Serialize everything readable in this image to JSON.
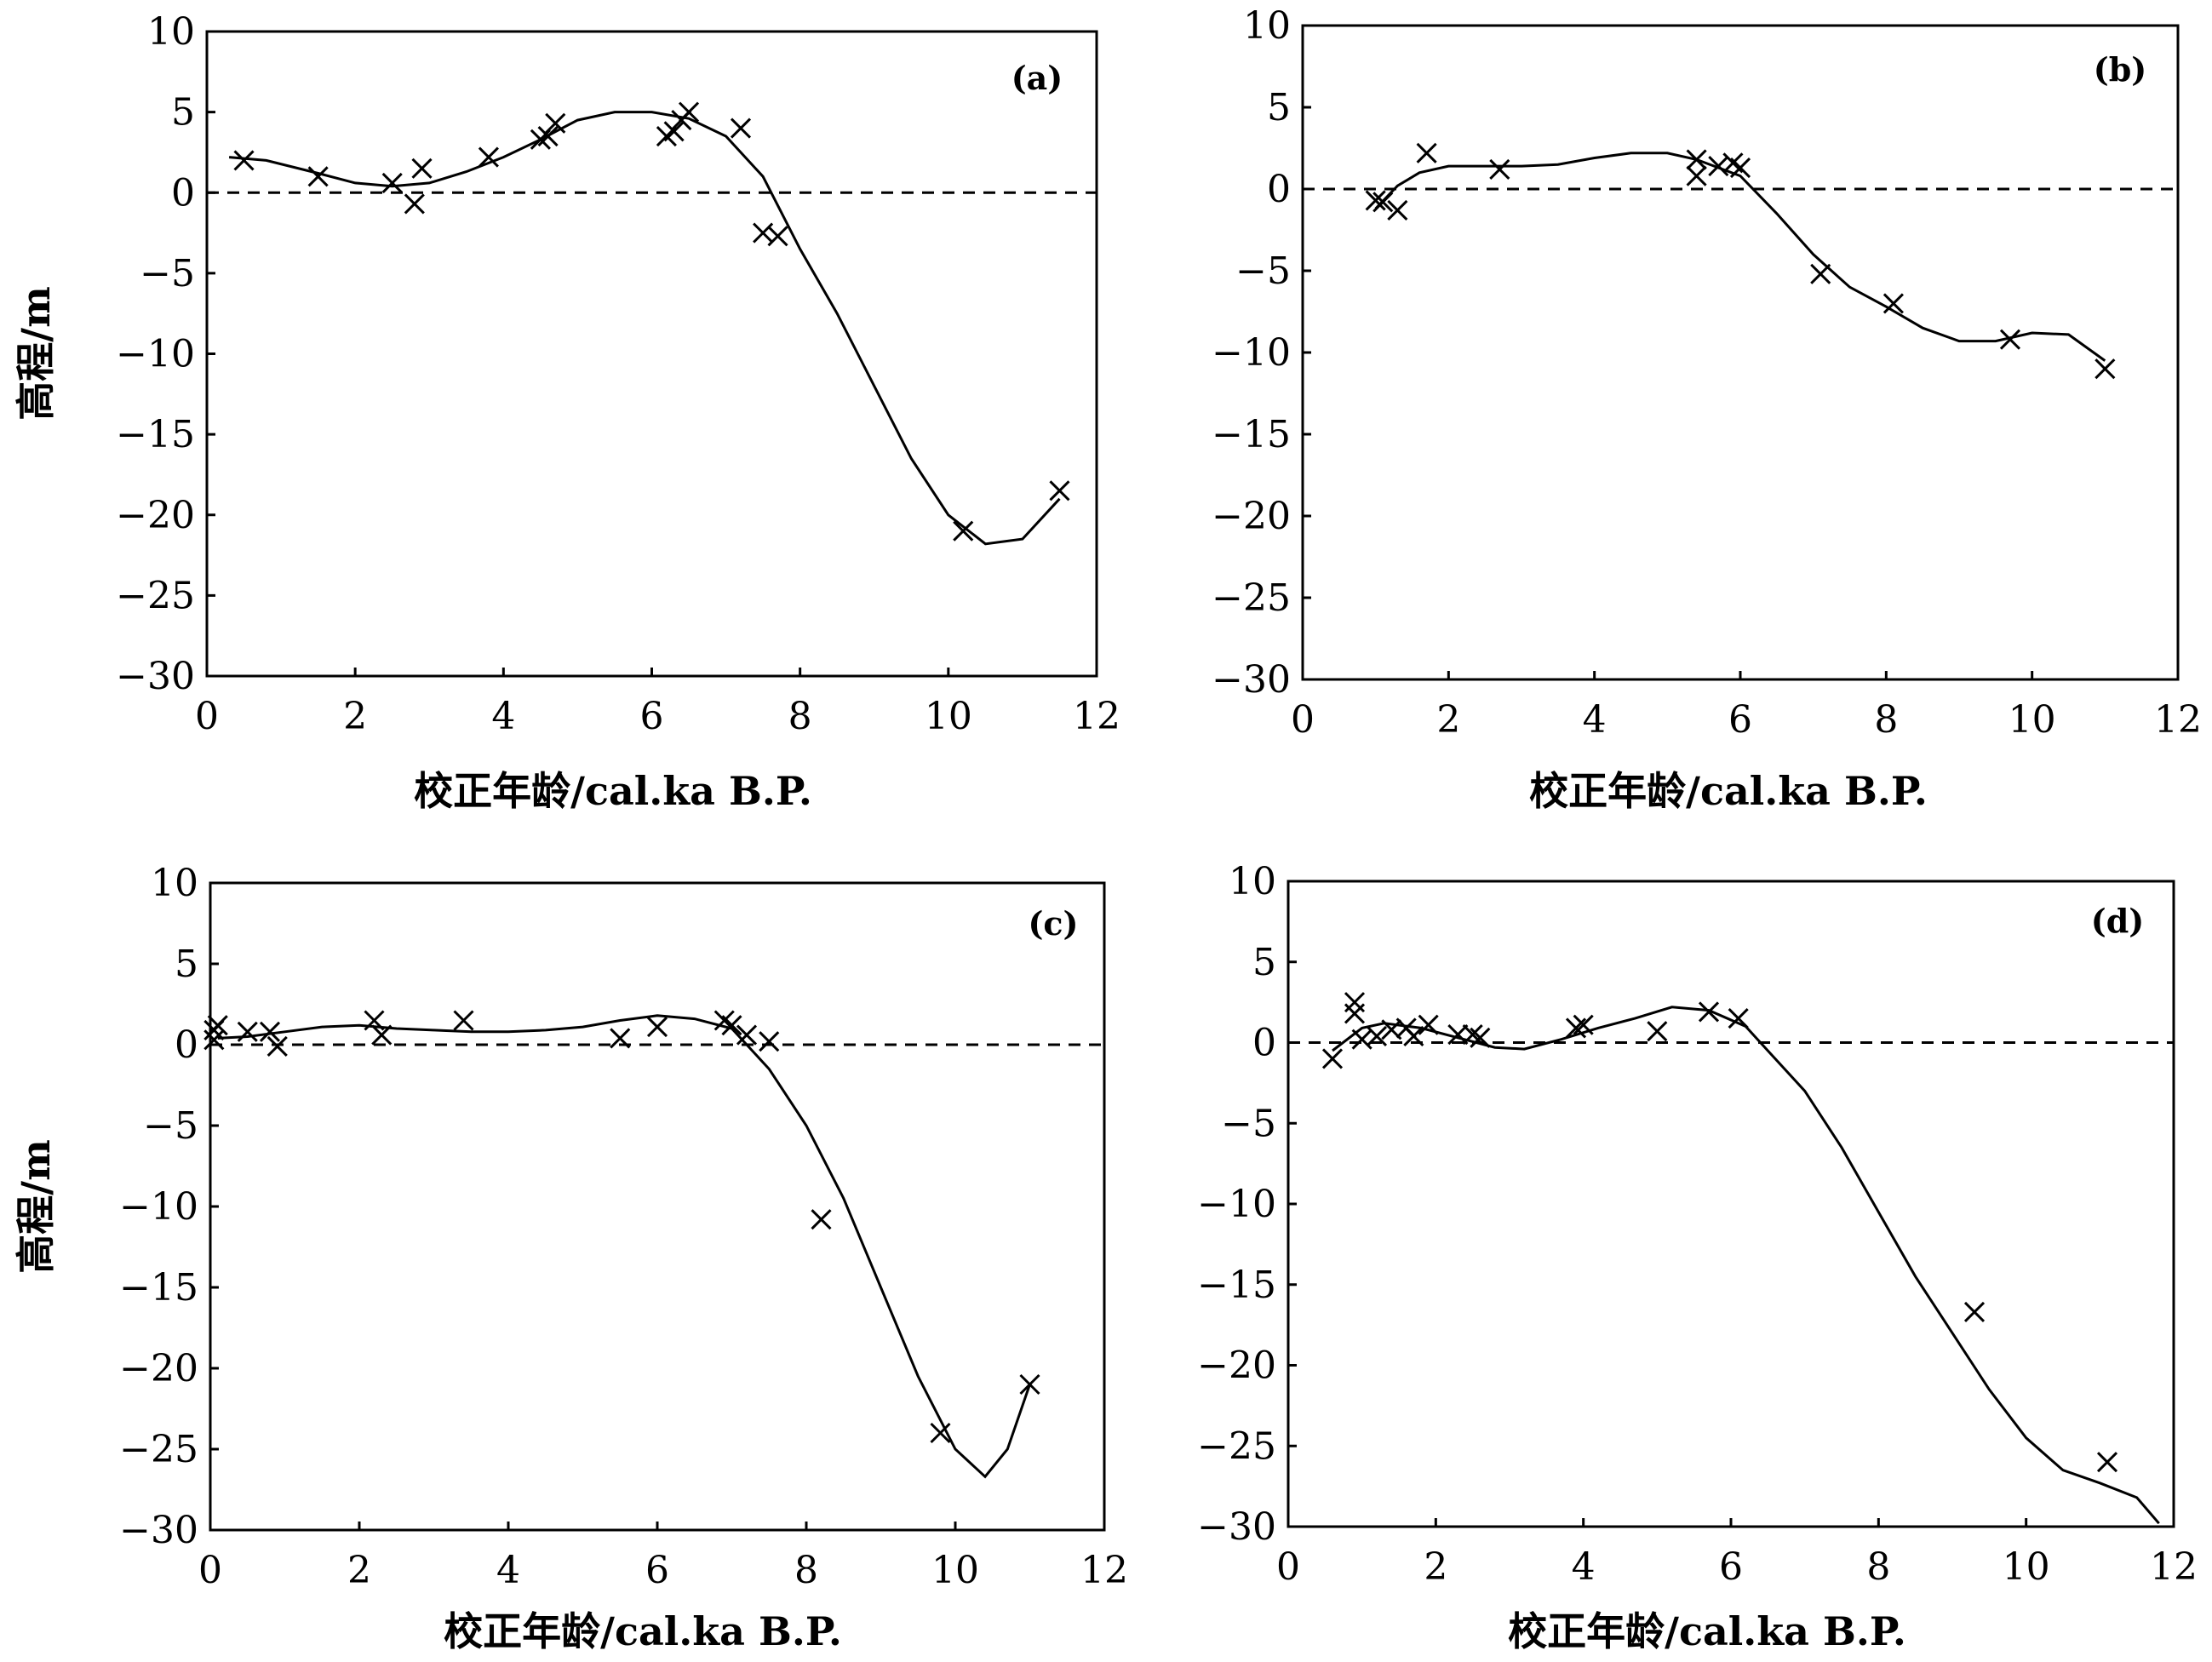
{
  "chart_data": [
    {
      "type": "scatter",
      "panel_label": "(a)",
      "xlabel": "校正年龄/cal.ka B.P.",
      "ylabel": "高程/m",
      "xlim": [
        0,
        12
      ],
      "ylim": [
        -30,
        10
      ],
      "xticks": [
        0,
        2,
        4,
        6,
        8,
        10,
        12
      ],
      "yticks": [
        10,
        5,
        0,
        -5,
        -10,
        -15,
        -20,
        -25,
        -30
      ],
      "reference_line_y": 0,
      "points": [
        [
          0.5,
          2.0
        ],
        [
          1.5,
          1.0
        ],
        [
          2.5,
          0.6
        ],
        [
          2.8,
          -0.7
        ],
        [
          2.9,
          1.5
        ],
        [
          3.8,
          2.2
        ],
        [
          4.5,
          3.3
        ],
        [
          4.6,
          3.5
        ],
        [
          4.7,
          4.3
        ],
        [
          6.2,
          3.5
        ],
        [
          6.3,
          3.8
        ],
        [
          6.4,
          4.5
        ],
        [
          6.5,
          5.0
        ],
        [
          7.2,
          4.0
        ],
        [
          7.5,
          -2.5
        ],
        [
          7.7,
          -2.7
        ],
        [
          10.2,
          -21.0
        ],
        [
          11.5,
          -18.5
        ]
      ],
      "curve": [
        [
          0.3,
          2.2
        ],
        [
          0.8,
          2.0
        ],
        [
          1.5,
          1.2
        ],
        [
          2.0,
          0.6
        ],
        [
          2.5,
          0.4
        ],
        [
          3.0,
          0.6
        ],
        [
          3.5,
          1.3
        ],
        [
          4.0,
          2.2
        ],
        [
          4.5,
          3.3
        ],
        [
          5.0,
          4.5
        ],
        [
          5.5,
          5.0
        ],
        [
          6.0,
          5.0
        ],
        [
          6.5,
          4.6
        ],
        [
          7.0,
          3.5
        ],
        [
          7.5,
          1.0
        ],
        [
          8.0,
          -3.5
        ],
        [
          8.5,
          -7.5
        ],
        [
          9.0,
          -12.0
        ],
        [
          9.5,
          -16.5
        ],
        [
          10.0,
          -20.0
        ],
        [
          10.5,
          -21.8
        ],
        [
          11.0,
          -21.5
        ],
        [
          11.5,
          -19.0
        ]
      ]
    },
    {
      "type": "scatter",
      "panel_label": "(b)",
      "xlabel": "校正年龄/cal.ka B.P.",
      "ylabel": "",
      "xlim": [
        0,
        12
      ],
      "ylim": [
        -30,
        10
      ],
      "xticks": [
        0,
        2,
        4,
        6,
        8,
        10,
        12
      ],
      "yticks": [
        10,
        5,
        0,
        -5,
        -10,
        -15,
        -20,
        -25,
        -30
      ],
      "reference_line_y": 0,
      "points": [
        [
          1.0,
          -0.7
        ],
        [
          1.1,
          -0.8
        ],
        [
          1.3,
          -1.3
        ],
        [
          1.7,
          2.2
        ],
        [
          2.7,
          1.2
        ],
        [
          5.4,
          1.8
        ],
        [
          5.4,
          0.8
        ],
        [
          5.7,
          1.4
        ],
        [
          5.9,
          1.6
        ],
        [
          6.0,
          1.3
        ],
        [
          7.1,
          -5.2
        ],
        [
          8.1,
          -7.0
        ],
        [
          9.7,
          -9.2
        ],
        [
          11.0,
          -11.0
        ]
      ],
      "curve": [
        [
          1.0,
          -1.2
        ],
        [
          1.3,
          0.2
        ],
        [
          1.6,
          1.0
        ],
        [
          2.0,
          1.4
        ],
        [
          3.0,
          1.4
        ],
        [
          3.5,
          1.5
        ],
        [
          4.0,
          1.9
        ],
        [
          4.5,
          2.2
        ],
        [
          5.0,
          2.2
        ],
        [
          5.4,
          1.8
        ],
        [
          6.0,
          0.8
        ],
        [
          6.5,
          -1.5
        ],
        [
          7.0,
          -4.0
        ],
        [
          7.5,
          -6.0
        ],
        [
          8.0,
          -7.2
        ],
        [
          8.5,
          -8.5
        ],
        [
          9.0,
          -9.3
        ],
        [
          9.5,
          -9.3
        ],
        [
          10.0,
          -8.8
        ],
        [
          10.5,
          -8.9
        ],
        [
          11.0,
          -10.5
        ]
      ]
    },
    {
      "type": "scatter",
      "panel_label": "(c)",
      "xlabel": "校正年龄/cal.ka B.P.",
      "ylabel": "高程/m",
      "xlim": [
        0,
        12
      ],
      "ylim": [
        -30,
        10
      ],
      "xticks": [
        0,
        2,
        4,
        6,
        8,
        10,
        12
      ],
      "yticks": [
        10,
        5,
        0,
        -5,
        -10,
        -15,
        -20,
        -25,
        -30
      ],
      "reference_line_y": 0,
      "points": [
        [
          0.05,
          0.3
        ],
        [
          0.05,
          0.9
        ],
        [
          0.1,
          1.2
        ],
        [
          0.5,
          0.8
        ],
        [
          0.8,
          0.8
        ],
        [
          0.9,
          -0.1
        ],
        [
          2.2,
          1.5
        ],
        [
          2.3,
          0.6
        ],
        [
          3.4,
          1.5
        ],
        [
          5.5,
          0.4
        ],
        [
          6.0,
          1.1
        ],
        [
          6.9,
          1.5
        ],
        [
          7.0,
          1.2
        ],
        [
          7.2,
          0.6
        ],
        [
          7.5,
          0.2
        ],
        [
          8.2,
          -10.8
        ],
        [
          9.8,
          -24.0
        ],
        [
          11.0,
          -21.0
        ]
      ],
      "curve": [
        [
          0.1,
          0.4
        ],
        [
          0.5,
          0.5
        ],
        [
          1.0,
          0.8
        ],
        [
          1.5,
          1.1
        ],
        [
          2.0,
          1.2
        ],
        [
          2.5,
          1.0
        ],
        [
          3.0,
          0.9
        ],
        [
          3.5,
          0.8
        ],
        [
          4.0,
          0.8
        ],
        [
          4.5,
          0.9
        ],
        [
          5.0,
          1.1
        ],
        [
          5.5,
          1.5
        ],
        [
          6.0,
          1.8
        ],
        [
          6.5,
          1.6
        ],
        [
          7.0,
          1.0
        ],
        [
          7.5,
          -1.5
        ],
        [
          8.0,
          -5.0
        ],
        [
          8.5,
          -9.5
        ],
        [
          9.0,
          -15.0
        ],
        [
          9.5,
          -20.5
        ],
        [
          10.0,
          -25.0
        ],
        [
          10.4,
          -26.7
        ],
        [
          10.7,
          -25.0
        ],
        [
          11.0,
          -21.0
        ]
      ]
    },
    {
      "type": "scatter",
      "panel_label": "(d)",
      "xlabel": "校正年龄/cal.ka B.P.",
      "ylabel": "",
      "xlim": [
        0,
        12
      ],
      "ylim": [
        -30,
        10
      ],
      "xticks": [
        0,
        2,
        4,
        6,
        8,
        10,
        12
      ],
      "yticks": [
        10,
        5,
        0,
        -5,
        -10,
        -15,
        -20,
        -25,
        -30
      ],
      "reference_line_y": 0,
      "points": [
        [
          0.6,
          -1.0
        ],
        [
          0.9,
          2.5
        ],
        [
          0.9,
          1.8
        ],
        [
          1.0,
          0.2
        ],
        [
          1.2,
          0.4
        ],
        [
          1.4,
          0.8
        ],
        [
          1.6,
          0.9
        ],
        [
          1.7,
          0.4
        ],
        [
          1.9,
          1.1
        ],
        [
          2.3,
          0.5
        ],
        [
          2.5,
          0.5
        ],
        [
          2.6,
          0.3
        ],
        [
          4.0,
          1.1
        ],
        [
          3.9,
          0.9
        ],
        [
          5.0,
          0.7
        ],
        [
          5.7,
          1.9
        ],
        [
          6.1,
          1.5
        ],
        [
          9.3,
          -16.7
        ],
        [
          11.1,
          -26.0
        ]
      ],
      "curve": [
        [
          0.6,
          -0.5
        ],
        [
          1.0,
          0.9
        ],
        [
          1.3,
          1.2
        ],
        [
          1.8,
          0.9
        ],
        [
          2.3,
          0.3
        ],
        [
          2.8,
          -0.3
        ],
        [
          3.2,
          -0.4
        ],
        [
          3.7,
          0.2
        ],
        [
          4.2,
          0.9
        ],
        [
          4.7,
          1.5
        ],
        [
          5.2,
          2.2
        ],
        [
          5.7,
          2.0
        ],
        [
          6.2,
          1.0
        ],
        [
          6.5,
          -0.5
        ],
        [
          7.0,
          -3.0
        ],
        [
          7.5,
          -6.5
        ],
        [
          8.0,
          -10.5
        ],
        [
          8.5,
          -14.5
        ],
        [
          9.0,
          -18.0
        ],
        [
          9.5,
          -21.5
        ],
        [
          10.0,
          -24.5
        ],
        [
          10.5,
          -26.5
        ],
        [
          11.0,
          -27.3
        ],
        [
          11.5,
          -28.2
        ],
        [
          11.8,
          -29.8
        ]
      ]
    }
  ]
}
